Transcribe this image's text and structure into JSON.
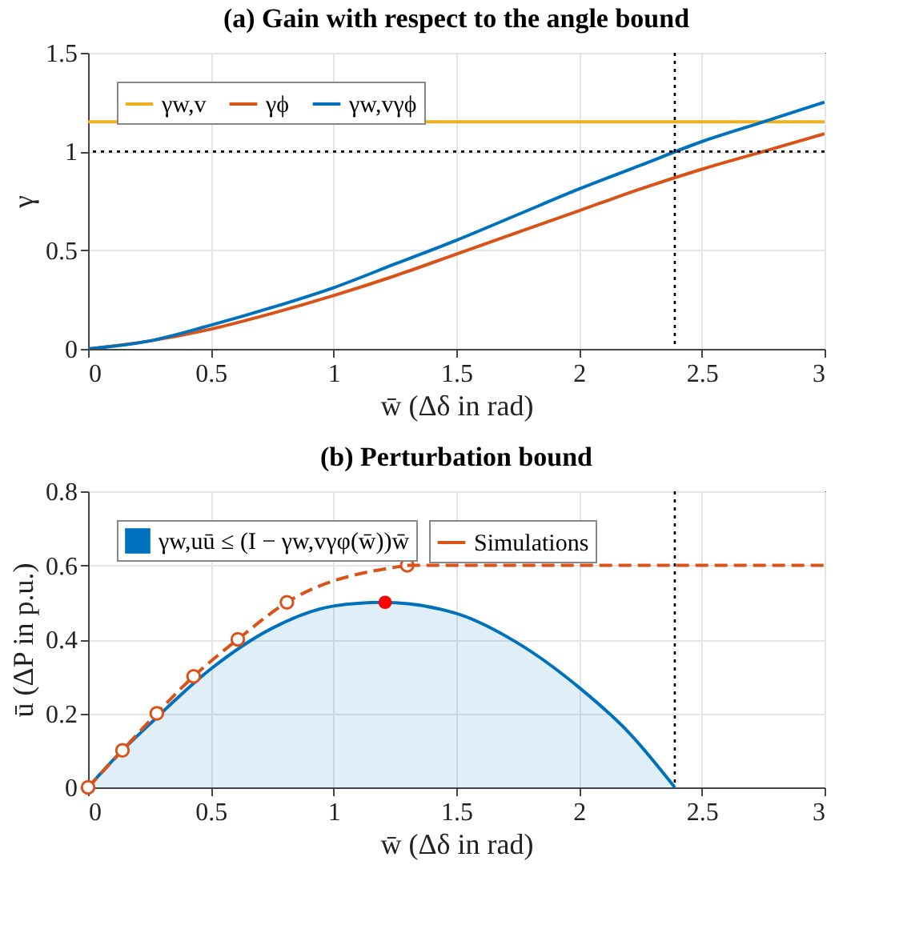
{
  "chart_data": [
    {
      "type": "line",
      "title": "(a) Gain with respect to the angle bound",
      "xlabel": "w̄ (Δδ in rad)",
      "ylabel": "γ",
      "xlim": [
        0,
        3
      ],
      "xticks": [
        0,
        0.5,
        1,
        1.5,
        2,
        2.5,
        3
      ],
      "ylim": [
        0,
        1.5
      ],
      "yticks": [
        0,
        0.5,
        1,
        1.5
      ],
      "grid": true,
      "legend": "top left",
      "marker": "none",
      "line_style": "solid",
      "series": [
        {
          "name": "γw,v",
          "color": "#edb120",
          "x": [
            0,
            3
          ],
          "values": [
            1.15,
            1.15
          ]
        },
        {
          "name": "γϕ",
          "color": "#d95319",
          "x": [
            0,
            0.25,
            0.5,
            0.75,
            1,
            1.25,
            1.5,
            1.75,
            2,
            2.25,
            2.5,
            2.75,
            3
          ],
          "values": [
            0,
            0.04,
            0.1,
            0.18,
            0.27,
            0.37,
            0.48,
            0.59,
            0.7,
            0.81,
            0.91,
            1.0,
            1.09
          ]
        },
        {
          "name": "γw,vγϕ",
          "color": "#0072bd",
          "x": [
            0,
            0.25,
            0.5,
            0.75,
            1,
            1.25,
            1.5,
            1.75,
            2,
            2.25,
            2.5,
            2.75,
            3
          ],
          "values": [
            0,
            0.04,
            0.12,
            0.21,
            0.31,
            0.43,
            0.55,
            0.68,
            0.81,
            0.93,
            1.05,
            1.15,
            1.25
          ]
        }
      ],
      "ref_lines": [
        {
          "axis": "x",
          "value": 2.39,
          "color": "#000000",
          "line_style": "dotted"
        },
        {
          "axis": "y",
          "value": 1,
          "color": "#000000",
          "line_style": "dotted"
        }
      ]
    },
    {
      "type": "line",
      "title": "(b) Perturbation bound",
      "xlabel": "w̄ (Δδ in rad)",
      "ylabel": "ū (ΔP in p.u.)",
      "xlim": [
        0,
        3
      ],
      "xticks": [
        0,
        0.5,
        1,
        1.5,
        2,
        2.5,
        3
      ],
      "ylim": [
        0,
        0.8
      ],
      "yticks": [
        0,
        0.2,
        0.4,
        0.6,
        0.8
      ],
      "grid": true,
      "legend": "top left",
      "series": [
        {
          "type": "area",
          "name": "γw,uū ≤ (I − γw,vγφ(w̄))w̄",
          "color": "#0072bd",
          "x": [
            0,
            0.125,
            0.25,
            0.5,
            0.75,
            1,
            1.2,
            1.5,
            1.75,
            2,
            2.2,
            2.39
          ],
          "values": [
            0,
            0.09,
            0.17,
            0.32,
            0.43,
            0.49,
            0.5,
            0.47,
            0.39,
            0.27,
            0.15,
            0
          ]
        },
        {
          "type": "line",
          "name": "Simulations",
          "color": "#d95319",
          "marker": "circle",
          "line_style": "dashed",
          "x": [
            0,
            0.14,
            0.28,
            0.43,
            0.61,
            0.81,
            1.3
          ],
          "values": [
            0,
            0.1,
            0.2,
            0.3,
            0.4,
            0.5,
            0.6
          ]
        },
        {
          "type": "line",
          "color": "#d95319",
          "marker": "none",
          "line_style": "dashed",
          "x": [
            1.3,
            3
          ],
          "values": [
            0.6,
            0.6
          ]
        },
        {
          "type": "scatter",
          "color": "#ff0000",
          "marker": "circle",
          "x": [
            1.21
          ],
          "values": [
            0.5
          ]
        }
      ],
      "ref_lines": [
        {
          "axis": "x",
          "value": 2.39,
          "color": "#000000",
          "line_style": "dotted"
        }
      ]
    }
  ]
}
